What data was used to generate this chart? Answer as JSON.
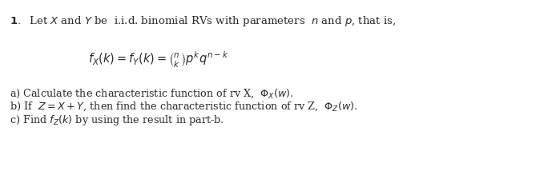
{
  "background_color": "#ffffff",
  "text_color": "#2a2a2a",
  "figsize": [
    6.99,
    2.14
  ],
  "dpi": 100,
  "line1_text": " Let $X$ and $Y$ be  i.i.d. binomial RVs with parameters  $n$ and $p$, that is,",
  "line2_math": "$f_X(k) = f_Y(k) = \\binom{n}{k}p^k q^{n-k}$",
  "line3a": "a) Calculate the characteristic function of rv X,  $\\Phi_X(w)$.",
  "line3b": "b) If  $Z = X + Y$, then find the characteristic function of rv Z,  $\\Phi_Z(w)$.",
  "line3c": "c) Find $f_Z(k)$ by using the result in part-b.",
  "font_size_main": 9.5,
  "font_size_math": 10.5,
  "font_size_abc": 9.2
}
